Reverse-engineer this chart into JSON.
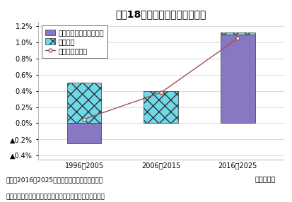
{
  "title": "図冈18　実質雇用者報酬の予測",
  "categories": [
    "1996～2005",
    "2006～2015",
    "2016～2025"
  ],
  "xlabel_extra": "（年平均）",
  "bar1_values": [
    -0.25,
    0.0,
    1.1
  ],
  "bar2_values": [
    0.5,
    0.4,
    0.02
  ],
  "line_values": [
    0.05,
    0.38,
    1.05
  ],
  "bar1_color": "#8878C3",
  "bar2_color": "#70D8E8",
  "line_color": "#A05050",
  "ylim_min": -0.45,
  "ylim_max": 1.25,
  "yticks": [
    -0.4,
    -0.2,
    0.0,
    0.2,
    0.4,
    0.6,
    0.8,
    1.0,
    1.2
  ],
  "legend_labels": [
    "一人当たり賃金（実質）",
    "雇用者数",
    "実質雇用者報酬"
  ],
  "note1": "（注）2016～2025はニッセイ基礎研究所の予測",
  "note2": "（資料）内閣府「国民経済計算」、総務省「労働力調査」",
  "bg_color": "#FFFFFF",
  "grid_color": "#CCCCCC",
  "bar_width": 0.45,
  "title_fontsize": 10,
  "label_fontsize": 7,
  "legend_fontsize": 7,
  "note_fontsize": 6.5
}
